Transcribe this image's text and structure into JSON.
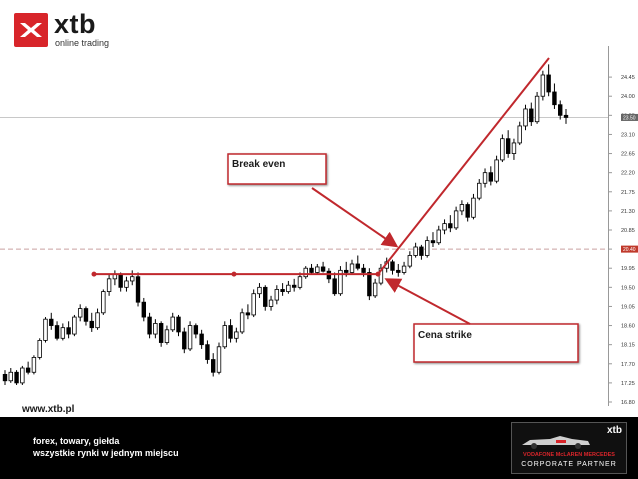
{
  "header": {
    "brand": "xtb",
    "subtitle": "online trading"
  },
  "footer": {
    "url": "www.xtb.pl",
    "tagline_1": "forex, towary, giełda",
    "tagline_2": "wszystkie rynki w jednym miejscu",
    "partner_logo": "xtb",
    "partner_line_1": "VODAFONE McLAREN MERCEDES",
    "partner_line_2": "CORPORATE PARTNER"
  },
  "chart_data": {
    "type": "candlestick",
    "y_ticks": [
      "24.45",
      "24.00",
      "23.55",
      "23.10",
      "22.65",
      "22.20",
      "21.75",
      "21.30",
      "20.85",
      "20.40",
      "19.95",
      "19.50",
      "19.05",
      "18.60",
      "18.15",
      "17.70",
      "17.25",
      "16.80"
    ],
    "ylim": [
      16.8,
      24.9
    ],
    "price_markers": [
      {
        "label": "23.50",
        "value": 23.5,
        "style": "solid"
      },
      {
        "label": "20.40",
        "value": 20.4,
        "style": "dashed"
      }
    ],
    "annotations": [
      {
        "label": "Break even",
        "value": 20.4
      },
      {
        "label": "Cena strike",
        "value": 19.81
      }
    ],
    "horizontal_level": 19.81,
    "candles": [
      [
        17.45,
        17.55,
        17.2,
        17.3
      ],
      [
        17.3,
        17.6,
        17.25,
        17.5
      ],
      [
        17.5,
        17.55,
        17.2,
        17.25
      ],
      [
        17.25,
        17.65,
        17.2,
        17.6
      ],
      [
        17.6,
        17.75,
        17.45,
        17.5
      ],
      [
        17.5,
        17.9,
        17.45,
        17.85
      ],
      [
        17.85,
        18.3,
        17.8,
        18.25
      ],
      [
        18.25,
        18.8,
        18.2,
        18.75
      ],
      [
        18.75,
        18.9,
        18.5,
        18.6
      ],
      [
        18.6,
        18.7,
        18.25,
        18.3
      ],
      [
        18.3,
        18.65,
        18.25,
        18.55
      ],
      [
        18.55,
        18.7,
        18.3,
        18.4
      ],
      [
        18.4,
        18.85,
        18.35,
        18.8
      ],
      [
        18.8,
        19.1,
        18.7,
        19.0
      ],
      [
        19.0,
        19.05,
        18.6,
        18.7
      ],
      [
        18.7,
        18.9,
        18.45,
        18.55
      ],
      [
        18.55,
        19.0,
        18.5,
        18.9
      ],
      [
        18.9,
        19.45,
        18.85,
        19.4
      ],
      [
        19.4,
        19.8,
        19.3,
        19.7
      ],
      [
        19.7,
        19.9,
        19.55,
        19.8
      ],
      [
        19.8,
        19.85,
        19.4,
        19.5
      ],
      [
        19.5,
        19.75,
        19.4,
        19.65
      ],
      [
        19.65,
        19.9,
        19.55,
        19.75
      ],
      [
        19.75,
        19.85,
        19.05,
        19.15
      ],
      [
        19.15,
        19.25,
        18.7,
        18.8
      ],
      [
        18.8,
        18.9,
        18.3,
        18.4
      ],
      [
        18.4,
        18.75,
        18.3,
        18.65
      ],
      [
        18.65,
        18.7,
        18.1,
        18.2
      ],
      [
        18.2,
        18.6,
        18.15,
        18.5
      ],
      [
        18.5,
        18.9,
        18.45,
        18.8
      ],
      [
        18.8,
        18.85,
        18.35,
        18.45
      ],
      [
        18.45,
        18.55,
        17.95,
        18.05
      ],
      [
        18.05,
        18.7,
        18.0,
        18.6
      ],
      [
        18.6,
        18.65,
        18.3,
        18.4
      ],
      [
        18.4,
        18.5,
        18.05,
        18.15
      ],
      [
        18.15,
        18.25,
        17.7,
        17.8
      ],
      [
        17.8,
        17.95,
        17.4,
        17.5
      ],
      [
        17.5,
        18.2,
        17.45,
        18.1
      ],
      [
        18.1,
        18.7,
        18.05,
        18.6
      ],
      [
        18.6,
        18.75,
        18.2,
        18.3
      ],
      [
        18.3,
        18.55,
        18.2,
        18.45
      ],
      [
        18.45,
        19.0,
        18.4,
        18.9
      ],
      [
        18.9,
        19.1,
        18.75,
        18.85
      ],
      [
        18.85,
        19.45,
        18.8,
        19.35
      ],
      [
        19.35,
        19.6,
        19.25,
        19.5
      ],
      [
        19.5,
        19.55,
        18.95,
        19.05
      ],
      [
        19.05,
        19.3,
        18.95,
        19.2
      ],
      [
        19.2,
        19.55,
        19.1,
        19.45
      ],
      [
        19.45,
        19.6,
        19.3,
        19.4
      ],
      [
        19.4,
        19.65,
        19.35,
        19.55
      ],
      [
        19.55,
        19.7,
        19.4,
        19.5
      ],
      [
        19.5,
        19.85,
        19.45,
        19.75
      ],
      [
        19.75,
        20.0,
        19.7,
        19.95
      ],
      [
        19.95,
        20.05,
        19.8,
        19.85
      ],
      [
        19.85,
        20.05,
        19.8,
        19.98
      ],
      [
        19.98,
        20.1,
        19.85,
        19.88
      ],
      [
        19.88,
        19.95,
        19.6,
        19.7
      ],
      [
        19.7,
        19.85,
        19.3,
        19.35
      ],
      [
        19.35,
        20.0,
        19.3,
        19.9
      ],
      [
        19.9,
        20.1,
        19.75,
        19.85
      ],
      [
        19.85,
        20.15,
        19.8,
        20.05
      ],
      [
        20.05,
        20.25,
        19.9,
        19.95
      ],
      [
        19.95,
        20.05,
        19.75,
        19.85
      ],
      [
        19.85,
        19.95,
        19.2,
        19.3
      ],
      [
        19.3,
        19.7,
        19.25,
        19.6
      ],
      [
        19.6,
        20.05,
        19.55,
        19.95
      ],
      [
        19.95,
        20.2,
        19.85,
        20.1
      ],
      [
        20.1,
        20.15,
        19.8,
        19.9
      ],
      [
        19.9,
        20.05,
        19.75,
        19.85
      ],
      [
        19.85,
        20.1,
        19.8,
        20.0
      ],
      [
        20.0,
        20.35,
        19.95,
        20.25
      ],
      [
        20.25,
        20.55,
        20.2,
        20.45
      ],
      [
        20.45,
        20.5,
        20.15,
        20.25
      ],
      [
        20.25,
        20.7,
        20.2,
        20.6
      ],
      [
        20.6,
        20.8,
        20.45,
        20.55
      ],
      [
        20.55,
        20.95,
        20.5,
        20.85
      ],
      [
        20.85,
        21.1,
        20.75,
        21.0
      ],
      [
        21.0,
        21.2,
        20.8,
        20.9
      ],
      [
        20.9,
        21.4,
        20.85,
        21.3
      ],
      [
        21.3,
        21.55,
        21.2,
        21.45
      ],
      [
        21.45,
        21.5,
        21.05,
        21.15
      ],
      [
        21.15,
        21.7,
        21.1,
        21.6
      ],
      [
        21.6,
        22.05,
        21.55,
        21.95
      ],
      [
        21.95,
        22.3,
        21.85,
        22.2
      ],
      [
        22.2,
        22.35,
        21.9,
        22.0
      ],
      [
        22.0,
        22.6,
        21.95,
        22.5
      ],
      [
        22.5,
        23.1,
        22.45,
        23.0
      ],
      [
        23.0,
        23.2,
        22.55,
        22.65
      ],
      [
        22.65,
        23.0,
        22.5,
        22.9
      ],
      [
        22.9,
        23.4,
        22.85,
        23.3
      ],
      [
        23.3,
        23.8,
        23.2,
        23.7
      ],
      [
        23.7,
        23.85,
        23.3,
        23.4
      ],
      [
        23.4,
        24.1,
        23.35,
        24.0
      ],
      [
        24.0,
        24.6,
        23.9,
        24.5
      ],
      [
        24.5,
        24.75,
        24.0,
        24.1
      ],
      [
        24.1,
        24.3,
        23.7,
        23.8
      ],
      [
        23.8,
        23.9,
        23.45,
        23.55
      ],
      [
        23.55,
        23.7,
        23.35,
        23.5
      ]
    ]
  }
}
